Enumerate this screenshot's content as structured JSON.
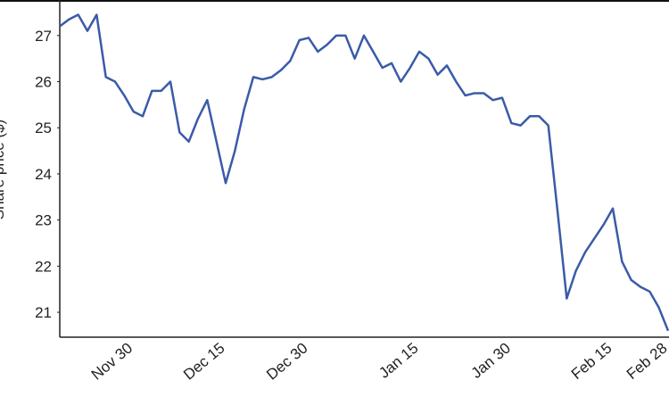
{
  "chart_data": {
    "type": "line",
    "y_label": "Share price ($)",
    "categories": [
      null,
      null,
      null,
      null,
      null,
      null,
      null,
      null,
      "Nov 30",
      null,
      null,
      null,
      null,
      null,
      null,
      null,
      null,
      null,
      "Dec 15",
      null,
      null,
      null,
      null,
      null,
      null,
      null,
      null,
      "Dec 30",
      null,
      null,
      null,
      null,
      null,
      null,
      null,
      null,
      null,
      null,
      null,
      "Jan 15",
      null,
      null,
      null,
      null,
      null,
      null,
      null,
      null,
      null,
      "Jan 30",
      null,
      null,
      null,
      null,
      null,
      null,
      null,
      null,
      null,
      null,
      "Feb 15",
      null,
      null,
      null,
      null,
      null,
      "Feb 28"
    ],
    "series": [
      {
        "name": "Share price",
        "color": "#3a5ba8",
        "values": [
          27.2,
          27.35,
          27.45,
          27.1,
          27.45,
          26.1,
          26.0,
          25.7,
          25.35,
          25.25,
          25.8,
          25.8,
          26.0,
          24.9,
          24.7,
          25.2,
          25.6,
          24.7,
          23.8,
          24.5,
          25.4,
          26.1,
          26.05,
          26.1,
          26.25,
          26.45,
          26.9,
          26.95,
          26.65,
          26.8,
          27.0,
          27.0,
          26.5,
          27.0,
          26.65,
          26.3,
          26.4,
          26.0,
          26.3,
          26.65,
          26.5,
          26.15,
          26.35,
          26.0,
          25.7,
          25.75,
          25.75,
          25.6,
          25.65,
          25.1,
          25.05,
          25.25,
          25.25,
          25.05,
          23.2,
          21.3,
          21.9,
          22.3,
          22.6,
          22.9,
          23.25,
          22.1,
          21.7,
          21.55,
          21.45,
          21.1,
          20.6
        ]
      }
    ],
    "ylim": [
      20.46,
      27.77
    ],
    "yticks": [
      21,
      22,
      23,
      24,
      25,
      26,
      27
    ],
    "grid": false
  }
}
